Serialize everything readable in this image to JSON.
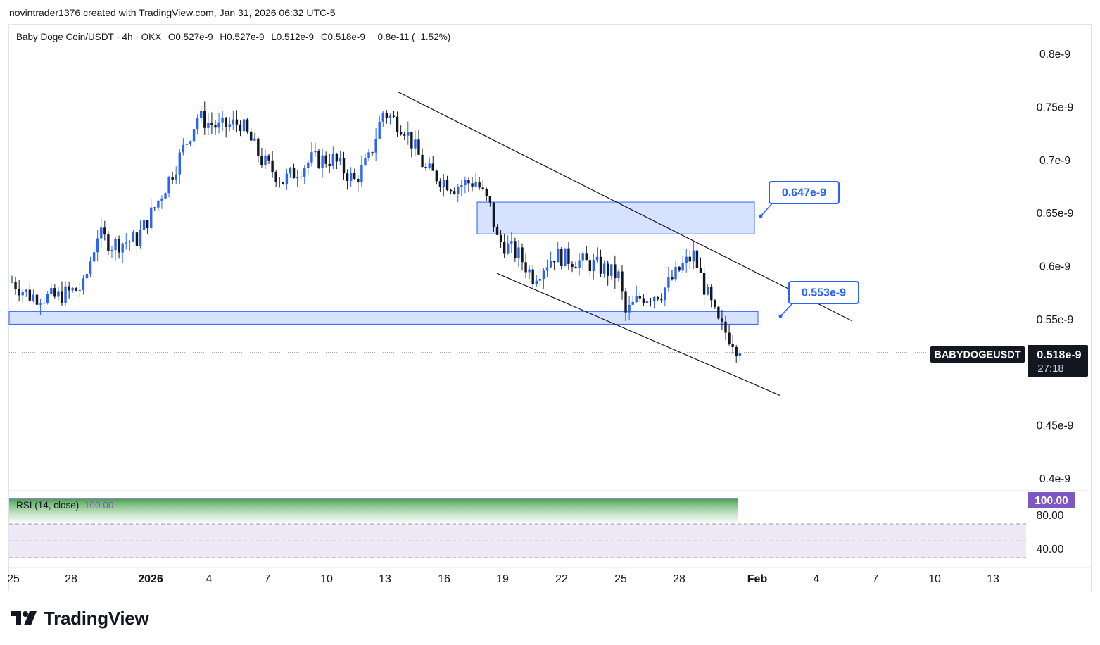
{
  "header": {
    "credit": "novintrader1376 created with TradingView.com, Jan 31, 2026 06:32 UTC-5"
  },
  "legend": {
    "symbol": "Baby Doge Coin/USDT · 4h · OKX",
    "open": "O0.527e-9",
    "high": "H0.527e-9",
    "low": "L0.512e-9",
    "close": "C0.518e-9",
    "change": "−0.8e-11 (−1.52%)"
  },
  "price_axis": {
    "ticks": [
      "0.8e-9",
      "0.75e-9",
      "0.7e-9",
      "0.65e-9",
      "0.6e-9",
      "0.55e-9",
      "0.45e-9",
      "0.4e-9"
    ],
    "tick_values": [
      0.8,
      0.75,
      0.7,
      0.65,
      0.6,
      0.55,
      0.45,
      0.4
    ]
  },
  "last_price": {
    "ticker": "BABYDOGEUSDT",
    "price": "0.518e-9",
    "countdown": "27:18",
    "value": 0.518
  },
  "annotations": {
    "upper_zone_label": "0.647e-9",
    "lower_zone_label": "0.553e-9"
  },
  "rsi": {
    "label": "RSI (14, close)",
    "value": "100.00",
    "badge": "100.00",
    "levels": [
      "80.00",
      "40.00"
    ]
  },
  "time_axis": {
    "labels": [
      "25",
      "28",
      "2026",
      "4",
      "7",
      "10",
      "13",
      "16",
      "19",
      "22",
      "25",
      "28",
      "Feb",
      "4",
      "7",
      "10",
      "13"
    ]
  },
  "brand": {
    "name": "TradingView"
  },
  "colors": {
    "up": "#2962ff",
    "down": "#131722",
    "zone_fill": "#d6e2ff",
    "zone_border": "#2962ff",
    "rsi_gradient_top": "#4caf50",
    "rsi_band": "#ede9f7",
    "rsi_badge": "#7e57c2"
  },
  "chart_data": {
    "type": "candlestick",
    "title": "Baby Doge Coin/USDT · 4h · OKX",
    "unit": "e-9 USDT",
    "ylim": [
      0.39,
      0.82
    ],
    "x_labels": [
      "25",
      "28",
      "2026",
      "4",
      "7",
      "10",
      "13",
      "16",
      "19",
      "22",
      "25",
      "28",
      "Feb",
      "4",
      "7",
      "10",
      "13"
    ],
    "waypoints": [
      {
        "t": 0,
        "p": 0.585
      },
      {
        "t": 5,
        "p": 0.572
      },
      {
        "t": 12,
        "p": 0.57
      },
      {
        "t": 20,
        "p": 0.58
      },
      {
        "t": 24,
        "p": 0.63
      },
      {
        "t": 28,
        "p": 0.62
      },
      {
        "t": 35,
        "p": 0.625
      },
      {
        "t": 40,
        "p": 0.655
      },
      {
        "t": 46,
        "p": 0.695
      },
      {
        "t": 52,
        "p": 0.74
      },
      {
        "t": 58,
        "p": 0.73
      },
      {
        "t": 64,
        "p": 0.735
      },
      {
        "t": 70,
        "p": 0.7
      },
      {
        "t": 76,
        "p": 0.68
      },
      {
        "t": 84,
        "p": 0.7
      },
      {
        "t": 90,
        "p": 0.7
      },
      {
        "t": 96,
        "p": 0.68
      },
      {
        "t": 100,
        "p": 0.7
      },
      {
        "t": 104,
        "p": 0.745
      },
      {
        "t": 110,
        "p": 0.73
      },
      {
        "t": 116,
        "p": 0.69
      },
      {
        "t": 124,
        "p": 0.675
      },
      {
        "t": 130,
        "p": 0.68
      },
      {
        "t": 134,
        "p": 0.655
      },
      {
        "t": 136,
        "p": 0.625
      },
      {
        "t": 142,
        "p": 0.61
      },
      {
        "t": 146,
        "p": 0.59
      },
      {
        "t": 152,
        "p": 0.61
      },
      {
        "t": 158,
        "p": 0.605
      },
      {
        "t": 164,
        "p": 0.6
      },
      {
        "t": 170,
        "p": 0.59
      },
      {
        "t": 172,
        "p": 0.555
      },
      {
        "t": 176,
        "p": 0.57
      },
      {
        "t": 182,
        "p": 0.575
      },
      {
        "t": 188,
        "p": 0.6
      },
      {
        "t": 191,
        "p": 0.61
      },
      {
        "t": 194,
        "p": 0.58
      },
      {
        "t": 198,
        "p": 0.545
      },
      {
        "t": 202,
        "p": 0.53
      },
      {
        "t": 204,
        "p": 0.518
      }
    ],
    "zones": [
      {
        "name": "0.647e-9",
        "top": 0.66,
        "bottom": 0.63,
        "x_start_date": "Jan 18",
        "x_end_date": "Jan 30"
      },
      {
        "name": "0.553e-9",
        "top": 0.557,
        "bottom": 0.545,
        "x_start_date": "Dec 24",
        "x_end_date": "Jan 30"
      }
    ],
    "trendlines": [
      {
        "name": "upper",
        "from": {
          "date": "Jan 13",
          "price": 0.764
        },
        "to": {
          "date": "Feb 5",
          "price": 0.548
        }
      },
      {
        "name": "lower",
        "from": {
          "date": "Jan 18",
          "price": 0.593
        },
        "to": {
          "date": "Jan 31",
          "price": 0.478
        }
      }
    ],
    "rsi": {
      "value": 100.0,
      "levels": [
        80,
        40
      ]
    }
  }
}
